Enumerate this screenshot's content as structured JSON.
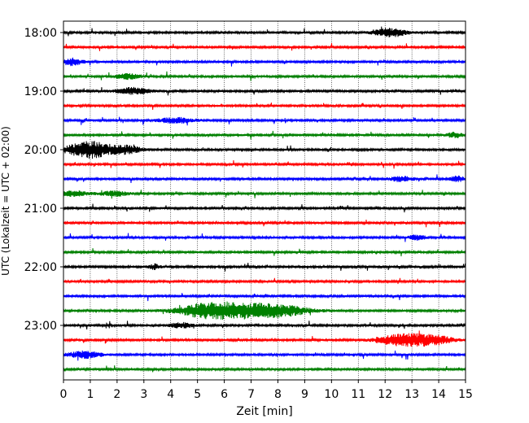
{
  "chart_data": {
    "type": "line",
    "title": "",
    "xlabel": "Zeit  [min]",
    "ylabel": "UTC (Lokalzeit = UTC + 02:00)",
    "xlim": [
      0,
      15
    ],
    "x_ticks": [
      "0",
      "1",
      "2",
      "3",
      "4",
      "5",
      "6",
      "7",
      "8",
      "9",
      "10",
      "11",
      "12",
      "13",
      "14",
      "15"
    ],
    "grid_x": true,
    "row_minutes": 15,
    "hour_labels": [
      "18:00",
      "19:00",
      "20:00",
      "21:00",
      "22:00",
      "23:00"
    ],
    "colors": [
      "#000000",
      "#ff0000",
      "#0000ff",
      "#008000"
    ],
    "traces": [
      {
        "start": "18:00",
        "color": "#000000",
        "events": [
          [
            12.2,
            5,
            0.6
          ]
        ]
      },
      {
        "start": "18:15",
        "color": "#ff0000",
        "events": []
      },
      {
        "start": "18:30",
        "color": "#0000ff",
        "events": [
          [
            0.3,
            4,
            0.4
          ]
        ]
      },
      {
        "start": "18:45",
        "color": "#008000",
        "events": [
          [
            2.4,
            3,
            0.5
          ]
        ]
      },
      {
        "start": "19:00",
        "color": "#000000",
        "events": [
          [
            2.6,
            4,
            0.6
          ]
        ]
      },
      {
        "start": "19:15",
        "color": "#ff0000",
        "events": []
      },
      {
        "start": "19:30",
        "color": "#0000ff",
        "events": [
          [
            4.2,
            3,
            0.7
          ]
        ]
      },
      {
        "start": "19:45",
        "color": "#008000",
        "events": [
          [
            14.6,
            3,
            0.3
          ]
        ]
      },
      {
        "start": "20:00",
        "color": "#000000",
        "events": [
          [
            1.0,
            10,
            0.9
          ],
          [
            2.4,
            4,
            0.5
          ]
        ]
      },
      {
        "start": "20:15",
        "color": "#ff0000",
        "events": []
      },
      {
        "start": "20:30",
        "color": "#0000ff",
        "events": [
          [
            12.6,
            3,
            0.4
          ],
          [
            14.7,
            3,
            0.3
          ]
        ]
      },
      {
        "start": "20:45",
        "color": "#008000",
        "events": [
          [
            0.4,
            3,
            0.5
          ],
          [
            1.9,
            3,
            0.5
          ]
        ]
      },
      {
        "start": "21:00",
        "color": "#000000",
        "events": []
      },
      {
        "start": "21:15",
        "color": "#ff0000",
        "events": []
      },
      {
        "start": "21:30",
        "color": "#0000ff",
        "events": [
          [
            13.2,
            3,
            0.3
          ]
        ]
      },
      {
        "start": "21:45",
        "color": "#008000",
        "events": []
      },
      {
        "start": "22:00",
        "color": "#000000",
        "events": [
          [
            3.4,
            3,
            0.2
          ]
        ]
      },
      {
        "start": "22:15",
        "color": "#ff0000",
        "events": []
      },
      {
        "start": "22:30",
        "color": "#0000ff",
        "events": []
      },
      {
        "start": "22:45",
        "color": "#008000",
        "events": [
          [
            6.6,
            9,
            1.8
          ],
          [
            5.2,
            4,
            0.9
          ],
          [
            8.3,
            3,
            0.9
          ]
        ]
      },
      {
        "start": "23:00",
        "color": "#000000",
        "events": [
          [
            4.4,
            3,
            0.4
          ]
        ]
      },
      {
        "start": "23:15",
        "color": "#ff0000",
        "events": [
          [
            13.0,
            7,
            0.8
          ],
          [
            12.1,
            3,
            0.6
          ],
          [
            14.0,
            4,
            0.6
          ]
        ]
      },
      {
        "start": "23:30",
        "color": "#0000ff",
        "events": [
          [
            0.8,
            4,
            0.6
          ]
        ]
      },
      {
        "start": "23:45",
        "color": "#008000",
        "events": []
      }
    ]
  }
}
